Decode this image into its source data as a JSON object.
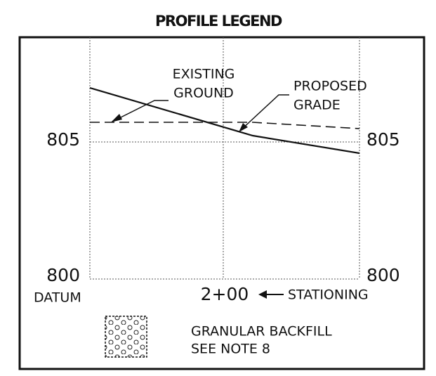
{
  "title": "PROFILE LEGEND",
  "elevations": {
    "left": [
      "805",
      "800"
    ],
    "right": [
      "805",
      "800"
    ]
  },
  "datum": "DATUM",
  "station": "2+00",
  "stationing": "STATIONING",
  "callouts": [
    {
      "lines": [
        "EXISTING",
        "GROUND"
      ]
    },
    {
      "lines": [
        "PROPOSED",
        "GRADE"
      ]
    }
  ],
  "legend": {
    "lines": [
      "GRANULAR BACKFILL",
      "SEE NOTE 8"
    ]
  }
}
